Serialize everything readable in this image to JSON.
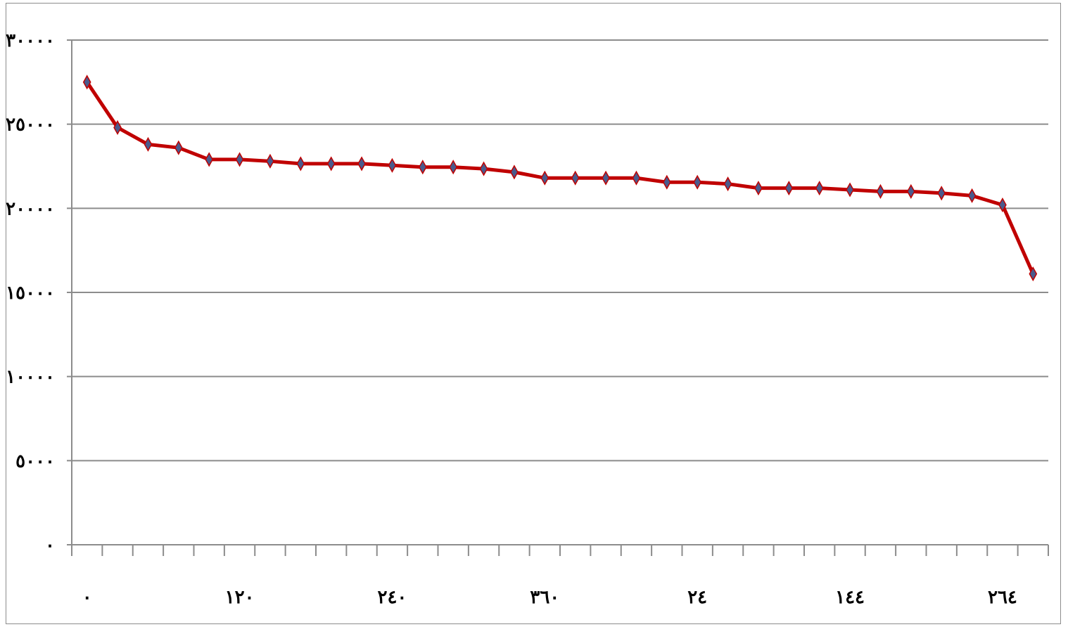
{
  "chart_data": {
    "type": "line",
    "title": "",
    "xlabel": "",
    "ylabel": "",
    "ylim": [
      0,
      30000
    ],
    "yticks": [
      {
        "value": 0,
        "label": "٠"
      },
      {
        "value": 5000,
        "label": "٥٠٠٠"
      },
      {
        "value": 10000,
        "label": "١٠٠٠٠"
      },
      {
        "value": 15000,
        "label": "١٥٠٠٠"
      },
      {
        "value": 20000,
        "label": "٢٠٠٠٠"
      },
      {
        "value": 25000,
        "label": "٢٥٠٠٠"
      },
      {
        "value": 30000,
        "label": "٣٠٠٠٠"
      }
    ],
    "x_category_count": 32,
    "xtick_labels": [
      {
        "index": 0,
        "label": "٠"
      },
      {
        "index": 5,
        "label": "١٢٠"
      },
      {
        "index": 10,
        "label": "٢٤٠"
      },
      {
        "index": 15,
        "label": "٣٦٠"
      },
      {
        "index": 20,
        "label": "٢٤"
      },
      {
        "index": 25,
        "label": "١٤٤"
      },
      {
        "index": 30,
        "label": "٢٦٤"
      }
    ],
    "grid": true,
    "series": [
      {
        "color": "#c00000",
        "marker_color": "#4a5a8c",
        "values": [
          27500,
          24800,
          23800,
          23600,
          22900,
          22900,
          22800,
          22650,
          22650,
          22650,
          22550,
          22450,
          22450,
          22350,
          22150,
          21800,
          21800,
          21800,
          21800,
          21550,
          21550,
          21450,
          21200,
          21200,
          21200,
          21100,
          21000,
          21000,
          20900,
          20750,
          20200,
          16100
        ]
      }
    ]
  }
}
